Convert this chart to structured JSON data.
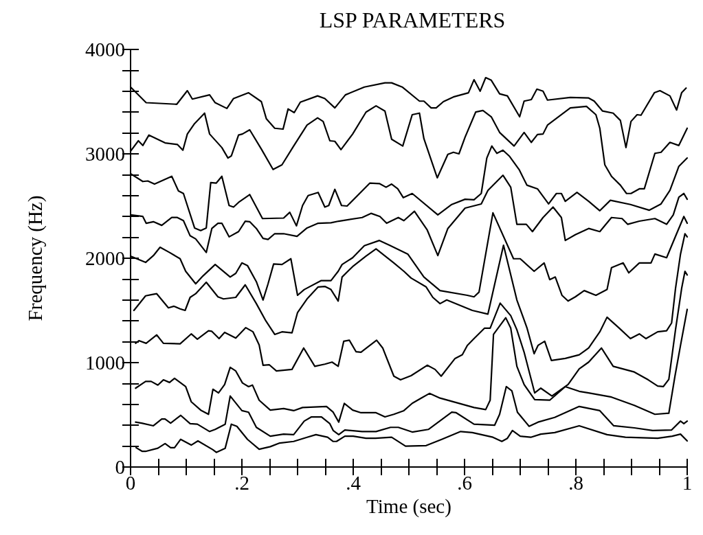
{
  "chart_data": {
    "type": "line",
    "title": "LSP PARAMETERS",
    "xlabel": "Time (sec)",
    "ylabel": "Frequency (Hz)",
    "xlim": [
      0,
      1
    ],
    "ylim": [
      0,
      4000
    ],
    "xticks": [
      0,
      {
        "value": 0.05,
        "label": null
      },
      {
        "value": 0.1,
        "label": null
      },
      {
        "value": 0.15,
        "label": null
      },
      {
        "value": 0.2,
        "label": ".2"
      },
      {
        "value": 0.25,
        "label": null
      },
      {
        "value": 0.3,
        "label": null
      },
      {
        "value": 0.35,
        "label": null
      },
      {
        "value": 0.4,
        "label": ".4"
      },
      {
        "value": 0.45,
        "label": null
      },
      {
        "value": 0.5,
        "label": null
      },
      {
        "value": 0.55,
        "label": null
      },
      {
        "value": 0.6,
        "label": ".6"
      },
      {
        "value": 0.65,
        "label": null
      },
      {
        "value": 0.7,
        "label": null
      },
      {
        "value": 0.75,
        "label": null
      },
      {
        "value": 0.8,
        "label": ".8"
      },
      {
        "value": 0.85,
        "label": null
      },
      {
        "value": 0.9,
        "label": null
      },
      {
        "value": 0.95,
        "label": null
      },
      1
    ],
    "yticks": [
      0,
      {
        "value": 200,
        "label": null
      },
      {
        "value": 400,
        "label": null
      },
      {
        "value": 600,
        "label": null
      },
      {
        "value": 800,
        "label": null
      },
      1000,
      {
        "value": 1200,
        "label": null
      },
      {
        "value": 1400,
        "label": null
      },
      {
        "value": 1600,
        "label": null
      },
      {
        "value": 1800,
        "label": null
      },
      2000,
      {
        "value": 2200,
        "label": null
      },
      {
        "value": 2400,
        "label": null
      },
      {
        "value": 2600,
        "label": null
      },
      {
        "value": 2800,
        "label": null
      },
      3000,
      {
        "value": 3200,
        "label": null
      },
      {
        "value": 3400,
        "label": null
      },
      {
        "value": 3600,
        "label": null
      },
      {
        "value": 3800,
        "label": null
      },
      4000
    ],
    "grid": false,
    "marker": "none",
    "line_style": "solid",
    "series": [
      {
        "color": "#000000",
        "x": [
          0.01,
          0.021,
          0.027,
          0.049,
          0.062,
          0.072,
          0.079,
          0.09,
          0.109,
          0.121,
          0.148,
          0.154,
          0.17,
          0.181,
          0.191,
          0.21,
          0.231,
          0.251,
          0.268,
          0.293,
          0.317,
          0.333,
          0.354,
          0.364,
          0.37,
          0.385,
          0.4,
          0.423,
          0.44,
          0.469,
          0.494,
          0.531,
          0.559,
          0.593,
          0.614,
          0.651,
          0.667,
          0.677,
          0.686,
          0.7,
          0.719,
          0.737,
          0.762,
          0.806,
          0.856,
          0.889,
          0.947,
          0.973,
          0.988,
          1
        ],
        "values": [
          185,
          150,
          150,
          180,
          225,
          185,
          185,
          265,
          210,
          250,
          165,
          140,
          180,
          410,
          390,
          265,
          170,
          195,
          230,
          245,
          285,
          310,
          285,
          245,
          245,
          295,
          295,
          275,
          275,
          285,
          200,
          205,
          265,
          340,
          330,
          285,
          245,
          275,
          350,
          295,
          285,
          315,
          330,
          395,
          310,
          285,
          275,
          295,
          315,
          250
        ]
      },
      {
        "color": "#000000",
        "x": [
          0.009,
          0.02,
          0.041,
          0.056,
          0.062,
          0.072,
          0.09,
          0.107,
          0.12,
          0.142,
          0.152,
          0.17,
          0.179,
          0.2,
          0.212,
          0.226,
          0.251,
          0.275,
          0.293,
          0.312,
          0.325,
          0.343,
          0.358,
          0.364,
          0.374,
          0.385,
          0.416,
          0.441,
          0.467,
          0.481,
          0.506,
          0.535,
          0.577,
          0.585,
          0.617,
          0.654,
          0.663,
          0.675,
          0.685,
          0.695,
          0.716,
          0.732,
          0.762,
          0.806,
          0.843,
          0.868,
          0.905,
          0.938,
          0.972,
          0.988,
          0.994,
          1
        ],
        "values": [
          430,
          420,
          395,
          460,
          460,
          420,
          495,
          415,
          410,
          340,
          360,
          410,
          680,
          540,
          525,
          380,
          295,
          315,
          310,
          440,
          480,
          480,
          415,
          350,
          310,
          355,
          340,
          340,
          380,
          380,
          335,
          360,
          525,
          520,
          410,
          400,
          505,
          770,
          730,
          525,
          390,
          430,
          475,
          580,
          540,
          395,
          375,
          350,
          355,
          440,
          415,
          440
        ]
      },
      {
        "color": "#000000",
        "x": [
          0.009,
          0.027,
          0.037,
          0.049,
          0.059,
          0.07,
          0.079,
          0.099,
          0.109,
          0.126,
          0.14,
          0.148,
          0.158,
          0.169,
          0.179,
          0.189,
          0.201,
          0.212,
          0.219,
          0.231,
          0.251,
          0.275,
          0.293,
          0.309,
          0.352,
          0.364,
          0.374,
          0.384,
          0.399,
          0.414,
          0.441,
          0.457,
          0.473,
          0.491,
          0.506,
          0.522,
          0.537,
          0.556,
          0.617,
          0.638,
          0.646,
          0.652,
          0.674,
          0.683,
          0.694,
          0.707,
          0.726,
          0.753,
          0.781,
          0.806,
          0.823,
          0.864,
          0.905,
          0.942,
          0.967,
          0.978,
          0.988,
          1
        ],
        "values": [
          755,
          820,
          820,
          785,
          835,
          810,
          850,
          770,
          625,
          545,
          505,
          745,
          710,
          790,
          955,
          920,
          805,
          770,
          785,
          640,
          545,
          560,
          540,
          570,
          580,
          525,
          430,
          610,
          545,
          520,
          520,
          480,
          505,
          540,
          610,
          660,
          705,
          660,
          570,
          550,
          640,
          1270,
          1430,
          1330,
          965,
          790,
          645,
          640,
          770,
          725,
          710,
          670,
          590,
          505,
          515,
          870,
          1165,
          1510
        ]
      },
      {
        "color": "#000000",
        "x": [
          0.009,
          0.015,
          0.028,
          0.047,
          0.059,
          0.089,
          0.109,
          0.12,
          0.14,
          0.146,
          0.159,
          0.169,
          0.189,
          0.207,
          0.22,
          0.231,
          0.238,
          0.249,
          0.262,
          0.29,
          0.311,
          0.331,
          0.349,
          0.362,
          0.373,
          0.383,
          0.393,
          0.405,
          0.414,
          0.442,
          0.453,
          0.473,
          0.485,
          0.504,
          0.533,
          0.547,
          0.558,
          0.583,
          0.596,
          0.605,
          0.617,
          0.636,
          0.646,
          0.664,
          0.683,
          0.694,
          0.707,
          0.726,
          0.737,
          0.757,
          0.786,
          0.806,
          0.823,
          0.846,
          0.867,
          0.905,
          0.93,
          0.947,
          0.957,
          0.967,
          0.979,
          0.99,
          0.996,
          1
        ],
        "values": [
          1185,
          1210,
          1185,
          1265,
          1185,
          1180,
          1275,
          1225,
          1305,
          1300,
          1230,
          1290,
          1235,
          1335,
          1295,
          1170,
          975,
          980,
          920,
          935,
          1140,
          965,
          985,
          1005,
          965,
          1205,
          1215,
          1105,
          1100,
          1215,
          1140,
          870,
          835,
          875,
          975,
          935,
          870,
          1040,
          1075,
          1165,
          1230,
          1330,
          1330,
          1570,
          1450,
          1315,
          1100,
          710,
          755,
          680,
          790,
          940,
          1005,
          1140,
          965,
          910,
          835,
          775,
          770,
          840,
          1315,
          1710,
          1875,
          1840
        ]
      },
      {
        "color": "#000000",
        "x": [
          0.006,
          0.027,
          0.037,
          0.047,
          0.068,
          0.078,
          0.089,
          0.098,
          0.107,
          0.117,
          0.136,
          0.157,
          0.167,
          0.189,
          0.206,
          0.226,
          0.243,
          0.259,
          0.272,
          0.29,
          0.3,
          0.317,
          0.337,
          0.349,
          0.36,
          0.373,
          0.38,
          0.399,
          0.423,
          0.441,
          0.473,
          0.491,
          0.504,
          0.531,
          0.543,
          0.556,
          0.568,
          0.614,
          0.642,
          0.67,
          0.694,
          0.712,
          0.725,
          0.732,
          0.744,
          0.756,
          0.781,
          0.806,
          0.823,
          0.843,
          0.856,
          0.877,
          0.898,
          0.914,
          0.926,
          0.947,
          0.963,
          0.972,
          0.979,
          0.988,
          0.996,
          1
        ],
        "values": [
          1500,
          1640,
          1650,
          1660,
          1525,
          1540,
          1515,
          1500,
          1625,
          1660,
          1770,
          1630,
          1610,
          1625,
          1745,
          1565,
          1400,
          1270,
          1295,
          1285,
          1480,
          1610,
          1725,
          1730,
          1700,
          1590,
          1820,
          1920,
          2020,
          2090,
          1955,
          1875,
          1810,
          1725,
          1625,
          1565,
          1600,
          1500,
          1465,
          2125,
          1600,
          1335,
          1085,
          1165,
          1205,
          1020,
          1040,
          1075,
          1140,
          1295,
          1435,
          1335,
          1230,
          1275,
          1230,
          1295,
          1305,
          1380,
          1710,
          2040,
          2235,
          2205
        ]
      },
      {
        "color": "#000000",
        "x": [
          0,
          0.027,
          0.041,
          0.053,
          0.07,
          0.089,
          0.099,
          0.117,
          0.13,
          0.152,
          0.179,
          0.189,
          0.2,
          0.21,
          0.226,
          0.238,
          0.247,
          0.257,
          0.272,
          0.288,
          0.3,
          0.312,
          0.342,
          0.36,
          0.373,
          0.38,
          0.399,
          0.42,
          0.447,
          0.465,
          0.498,
          0.527,
          0.556,
          0.605,
          0.617,
          0.626,
          0.651,
          0.688,
          0.7,
          0.725,
          0.743,
          0.753,
          0.763,
          0.775,
          0.786,
          0.799,
          0.815,
          0.836,
          0.856,
          0.864,
          0.885,
          0.895,
          0.914,
          0.935,
          0.942,
          0.963,
          0.981,
          0.994,
          1
        ],
        "values": [
          2020,
          1960,
          2025,
          2105,
          2055,
          1995,
          1875,
          1755,
          1830,
          1940,
          1820,
          1855,
          1955,
          1930,
          1775,
          1600,
          1755,
          1945,
          1940,
          1995,
          1645,
          1700,
          1785,
          1785,
          1875,
          1940,
          2005,
          2120,
          2170,
          2125,
          2040,
          1820,
          1690,
          1645,
          1630,
          1675,
          2435,
          1995,
          1995,
          1875,
          1955,
          1795,
          1820,
          1645,
          1590,
          1630,
          1690,
          1645,
          1700,
          1910,
          1955,
          1860,
          1955,
          1955,
          2040,
          2005,
          2235,
          2400,
          2335
        ]
      },
      {
        "color": "#000000",
        "x": [
          0,
          0.022,
          0.028,
          0.041,
          0.056,
          0.074,
          0.084,
          0.095,
          0.107,
          0.117,
          0.136,
          0.146,
          0.157,
          0.164,
          0.177,
          0.194,
          0.206,
          0.214,
          0.226,
          0.238,
          0.247,
          0.259,
          0.275,
          0.299,
          0.317,
          0.337,
          0.36,
          0.374,
          0.416,
          0.432,
          0.448,
          0.46,
          0.481,
          0.491,
          0.51,
          0.533,
          0.552,
          0.57,
          0.601,
          0.63,
          0.642,
          0.669,
          0.683,
          0.694,
          0.711,
          0.722,
          0.741,
          0.759,
          0.774,
          0.781,
          0.799,
          0.823,
          0.843,
          0.864,
          0.883,
          0.893,
          0.914,
          0.942,
          0.963,
          0.975,
          0.985,
          0.994,
          1
        ],
        "values": [
          2415,
          2400,
          2335,
          2350,
          2315,
          2390,
          2390,
          2360,
          2215,
          2185,
          2055,
          2285,
          2335,
          2335,
          2205,
          2255,
          2355,
          2350,
          2285,
          2190,
          2180,
          2235,
          2235,
          2210,
          2290,
          2335,
          2340,
          2355,
          2390,
          2430,
          2400,
          2335,
          2390,
          2360,
          2450,
          2270,
          2025,
          2285,
          2480,
          2520,
          2650,
          2795,
          2680,
          2325,
          2325,
          2255,
          2390,
          2490,
          2390,
          2170,
          2225,
          2285,
          2255,
          2390,
          2380,
          2325,
          2355,
          2380,
          2325,
          2415,
          2585,
          2620,
          2565
        ]
      },
      {
        "color": "#000000",
        "x": [
          0,
          0.022,
          0.031,
          0.043,
          0.074,
          0.086,
          0.095,
          0.115,
          0.126,
          0.136,
          0.144,
          0.154,
          0.164,
          0.177,
          0.185,
          0.194,
          0.214,
          0.237,
          0.275,
          0.286,
          0.298,
          0.309,
          0.319,
          0.337,
          0.349,
          0.356,
          0.367,
          0.379,
          0.389,
          0.43,
          0.447,
          0.459,
          0.469,
          0.48,
          0.49,
          0.506,
          0.552,
          0.577,
          0.601,
          0.617,
          0.63,
          0.64,
          0.649,
          0.658,
          0.669,
          0.681,
          0.698,
          0.712,
          0.731,
          0.751,
          0.765,
          0.774,
          0.781,
          0.802,
          0.823,
          0.843,
          0.862,
          0.898,
          0.932,
          0.953,
          0.969,
          0.985,
          1
        ],
        "values": [
          2810,
          2735,
          2740,
          2710,
          2785,
          2645,
          2620,
          2290,
          2265,
          2290,
          2725,
          2720,
          2785,
          2505,
          2490,
          2535,
          2610,
          2380,
          2385,
          2440,
          2310,
          2505,
          2600,
          2630,
          2490,
          2505,
          2660,
          2505,
          2500,
          2720,
          2715,
          2680,
          2710,
          2665,
          2580,
          2620,
          2415,
          2515,
          2565,
          2560,
          2620,
          2960,
          3075,
          3005,
          3035,
          2975,
          2850,
          2700,
          2665,
          2520,
          2620,
          2620,
          2545,
          2630,
          2545,
          2455,
          2555,
          2515,
          2460,
          2520,
          2650,
          2880,
          2960
        ]
      },
      {
        "color": "#000000",
        "x": [
          0,
          0.014,
          0.022,
          0.033,
          0.062,
          0.084,
          0.094,
          0.102,
          0.115,
          0.133,
          0.142,
          0.164,
          0.175,
          0.181,
          0.194,
          0.201,
          0.214,
          0.235,
          0.256,
          0.272,
          0.293,
          0.317,
          0.336,
          0.346,
          0.358,
          0.367,
          0.378,
          0.399,
          0.423,
          0.441,
          0.457,
          0.469,
          0.489,
          0.506,
          0.519,
          0.527,
          0.551,
          0.57,
          0.58,
          0.59,
          0.601,
          0.62,
          0.633,
          0.648,
          0.663,
          0.689,
          0.707,
          0.72,
          0.731,
          0.741,
          0.749,
          0.79,
          0.819,
          0.836,
          0.843,
          0.852,
          0.864,
          0.88,
          0.891,
          0.899,
          0.914,
          0.923,
          0.942,
          0.953,
          0.969,
          0.985,
          1
        ],
        "values": [
          3025,
          3125,
          3080,
          3180,
          3105,
          3090,
          3035,
          3190,
          3290,
          3390,
          3190,
          3060,
          2960,
          2980,
          3180,
          3190,
          3230,
          3045,
          2850,
          2895,
          3075,
          3275,
          3345,
          3310,
          3125,
          3120,
          3040,
          3190,
          3400,
          3460,
          3410,
          3140,
          3075,
          3375,
          3390,
          3145,
          2770,
          2995,
          3015,
          3000,
          3160,
          3400,
          3415,
          3355,
          3205,
          3075,
          3205,
          3110,
          3185,
          3190,
          3275,
          3440,
          3455,
          3375,
          3245,
          2895,
          2785,
          2700,
          2620,
          2620,
          2665,
          2665,
          3005,
          3015,
          3110,
          3080,
          3245
        ]
      },
      {
        "color": "#000000",
        "x": [
          0,
          0.028,
          0.083,
          0.102,
          0.111,
          0.142,
          0.152,
          0.173,
          0.185,
          0.212,
          0.235,
          0.244,
          0.259,
          0.274,
          0.283,
          0.294,
          0.305,
          0.336,
          0.349,
          0.367,
          0.386,
          0.42,
          0.457,
          0.469,
          0.488,
          0.519,
          0.527,
          0.54,
          0.549,
          0.562,
          0.58,
          0.607,
          0.617,
          0.628,
          0.638,
          0.648,
          0.663,
          0.677,
          0.699,
          0.707,
          0.72,
          0.73,
          0.741,
          0.749,
          0.79,
          0.823,
          0.833,
          0.848,
          0.867,
          0.88,
          0.89,
          0.899,
          0.91,
          0.917,
          0.941,
          0.951,
          0.969,
          0.981,
          0.99,
          0.998
        ],
        "values": [
          3640,
          3490,
          3475,
          3605,
          3525,
          3565,
          3490,
          3435,
          3530,
          3585,
          3500,
          3335,
          3245,
          3237,
          3430,
          3395,
          3495,
          3555,
          3530,
          3440,
          3565,
          3640,
          3680,
          3680,
          3640,
          3505,
          3505,
          3440,
          3440,
          3500,
          3545,
          3585,
          3710,
          3600,
          3730,
          3705,
          3575,
          3555,
          3355,
          3505,
          3520,
          3620,
          3600,
          3515,
          3540,
          3535,
          3505,
          3410,
          3390,
          3320,
          3060,
          3310,
          3375,
          3370,
          3585,
          3605,
          3555,
          3420,
          3585,
          3630
        ]
      }
    ]
  }
}
